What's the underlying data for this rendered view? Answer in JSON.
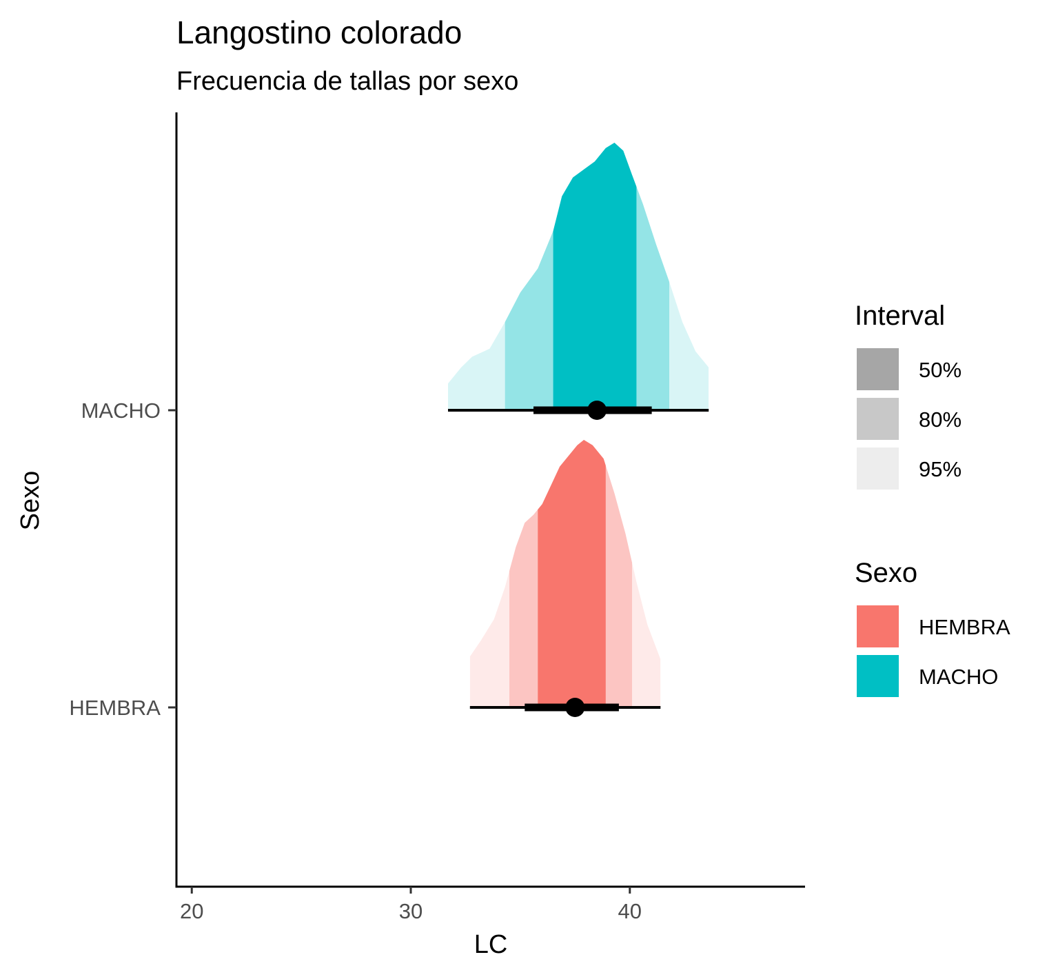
{
  "chart_data": {
    "type": "halfeye",
    "title": "Langostino colorado",
    "subtitle": "Frecuencia de tallas por sexo",
    "xlabel": "LC",
    "ylabel": "Sexo",
    "xlim": [
      19.3,
      48
    ],
    "x_ticks": [
      20,
      30,
      40
    ],
    "categories": [
      "HEMBRA",
      "MACHO"
    ],
    "grid": false,
    "legend_placement": "right",
    "series": [
      {
        "name": "HEMBRA",
        "color": "#F8766D",
        "median": 37.5,
        "interval_66": [
          35.2,
          39.5
        ],
        "interval_95": [
          32.7,
          41.4
        ],
        "density_range": [
          32.7,
          41.4
        ],
        "bands": {
          "50%": [
            35.8,
            38.9
          ],
          "80%": [
            34.5,
            40.1
          ],
          "95%": [
            32.7,
            41.4
          ]
        },
        "density": [
          [
            32.7,
            0.19
          ],
          [
            33.2,
            0.25
          ],
          [
            33.8,
            0.33
          ],
          [
            34.3,
            0.45
          ],
          [
            34.8,
            0.6
          ],
          [
            35.2,
            0.69
          ],
          [
            35.6,
            0.72
          ],
          [
            36.0,
            0.76
          ],
          [
            36.4,
            0.83
          ],
          [
            36.8,
            0.9
          ],
          [
            37.2,
            0.94
          ],
          [
            37.6,
            0.98
          ],
          [
            37.9,
            1.0
          ],
          [
            38.3,
            0.98
          ],
          [
            38.8,
            0.93
          ],
          [
            39.3,
            0.8
          ],
          [
            39.8,
            0.65
          ],
          [
            40.3,
            0.47
          ],
          [
            40.8,
            0.31
          ],
          [
            41.4,
            0.18
          ]
        ]
      },
      {
        "name": "MACHO",
        "color": "#00BFC4",
        "median": 38.5,
        "interval_66": [
          35.6,
          41.0
        ],
        "interval_95": [
          31.7,
          43.6
        ],
        "density_range": [
          31.7,
          43.6
        ],
        "bands": {
          "50%": [
            36.5,
            40.3
          ],
          "80%": [
            34.3,
            41.8
          ],
          "95%": [
            31.7,
            43.6
          ]
        },
        "density": [
          [
            31.7,
            0.1
          ],
          [
            32.3,
            0.16
          ],
          [
            32.8,
            0.2
          ],
          [
            33.6,
            0.23
          ],
          [
            34.3,
            0.33
          ],
          [
            35.0,
            0.44
          ],
          [
            35.8,
            0.53
          ],
          [
            36.5,
            0.67
          ],
          [
            36.9,
            0.8
          ],
          [
            37.4,
            0.87
          ],
          [
            37.9,
            0.9
          ],
          [
            38.4,
            0.93
          ],
          [
            38.9,
            0.98
          ],
          [
            39.3,
            1.0
          ],
          [
            39.7,
            0.97
          ],
          [
            40.1,
            0.88
          ],
          [
            40.6,
            0.77
          ],
          [
            41.2,
            0.62
          ],
          [
            41.8,
            0.48
          ],
          [
            42.4,
            0.33
          ],
          [
            43.0,
            0.22
          ],
          [
            43.6,
            0.16
          ]
        ]
      }
    ],
    "legends": {
      "interval": {
        "title": "Interval",
        "entries": [
          {
            "label": "50%",
            "color": "#A6A6A6"
          },
          {
            "label": "80%",
            "color": "#C8C8C8"
          },
          {
            "label": "95%",
            "color": "#EDEDED"
          }
        ]
      },
      "sexo": {
        "title": "Sexo",
        "entries": [
          {
            "label": "HEMBRA",
            "color": "#F8766D"
          },
          {
            "label": "MACHO",
            "color": "#00BFC4"
          }
        ]
      }
    }
  }
}
